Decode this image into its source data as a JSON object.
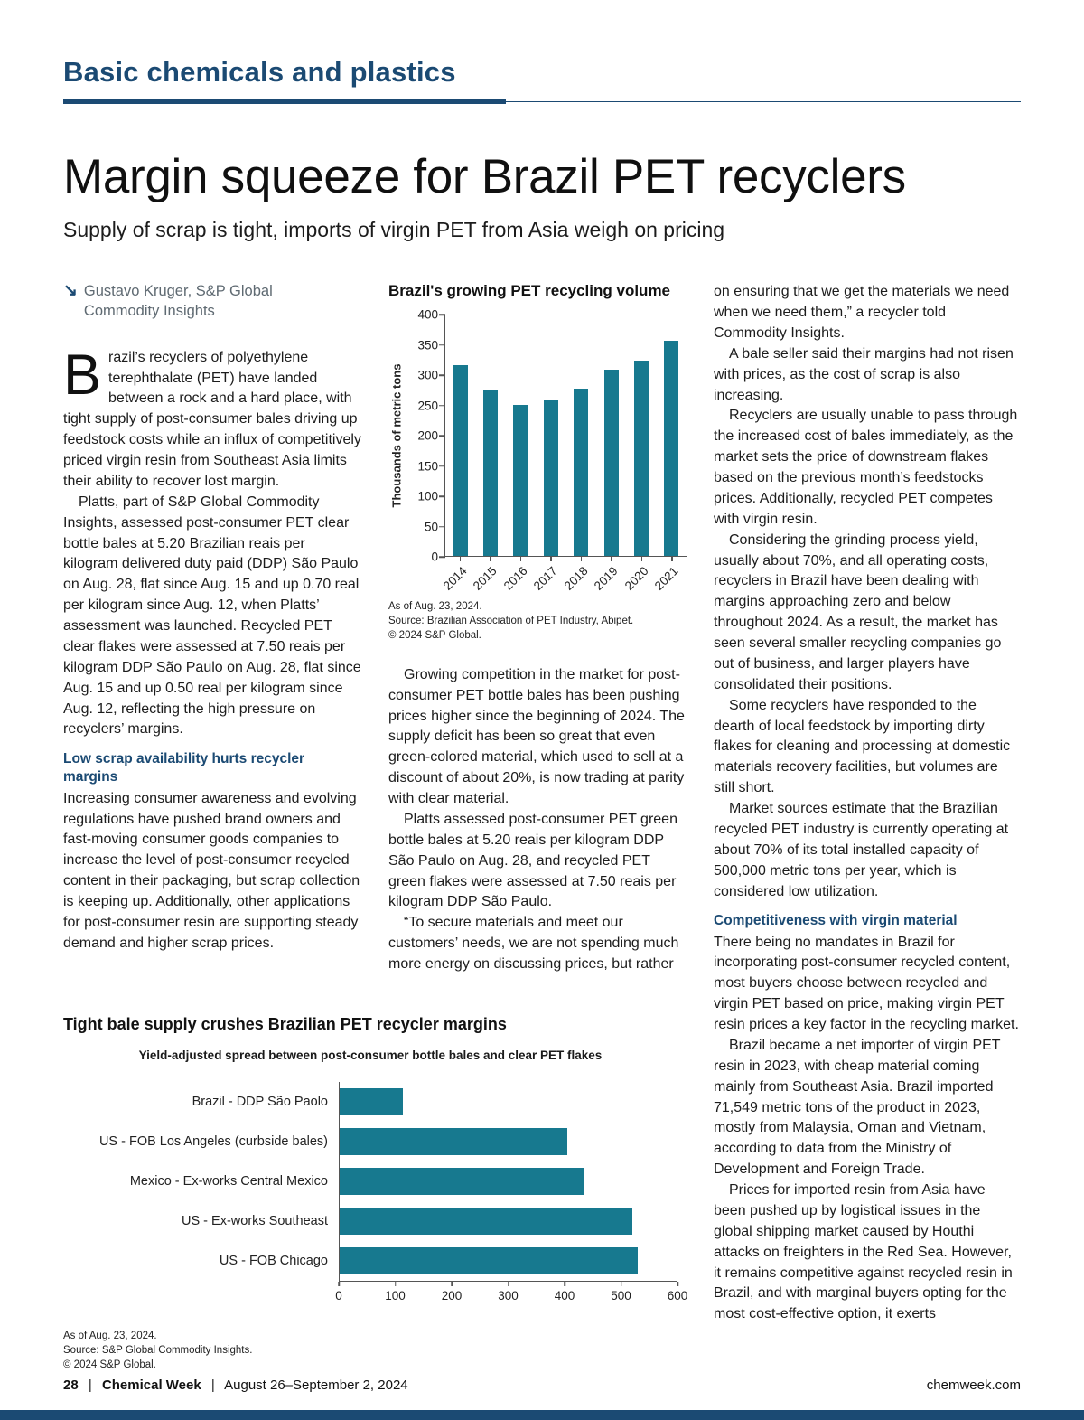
{
  "colors": {
    "accent_navy": "#1b4a73",
    "bar_teal": "#17798f"
  },
  "icons": {
    "byline_arrow": "↘"
  },
  "page": {
    "section": "Basic chemicals and plastics",
    "headline": "Margin squeeze for Brazil PET recyclers",
    "deck": "Supply of scrap is tight, imports of virgin PET from Asia weigh on pricing",
    "byline": "Gustavo Kruger, S&P Global Commodity Insights",
    "footer": {
      "page_number": "28",
      "publication": "Chemical Week",
      "date": "August 26–September 2, 2024",
      "separator": "|",
      "website": "chemweek.com"
    }
  },
  "article": {
    "col1_blocks": [
      {
        "type": "lead",
        "dropcap": "B",
        "text": "razil’s recyclers of polyethylene terephthalate (PET) have landed between a rock and a hard place, with tight supply of post-consumer bales driving up feedstock costs while an influx of competitively priced virgin resin from Southeast Asia limits their ability to recover lost margin."
      },
      {
        "type": "para",
        "indent": true,
        "text": "Platts, part of S&P Global Commodity Insights, assessed post-consumer PET clear bottle bales at 5.20 Brazilian reais per kilogram delivered duty paid (DDP) São Paulo on Aug. 28, flat since Aug. 15 and up 0.70 real per kilogram since Aug. 12, when Platts’ assessment was launched. Recycled PET clear flakes were assessed at 7.50 reais per kilogram DDP São Paulo on Aug. 28, flat since Aug. 15 and up 0.50 real per kilogram since Aug. 12, reflecting the high pressure on recyclers’ margins."
      },
      {
        "type": "heading",
        "text": "Low scrap availability hurts recycler margins"
      },
      {
        "type": "para",
        "indent": false,
        "text": "Increasing consumer awareness and evolving regulations have pushed brand owners and fast-moving consumer goods companies to increase the level of post-consumer recycled content in their packaging, but scrap collection is keeping up. Additionally, other applications for post-consumer resin are supporting steady demand and higher scrap prices."
      }
    ],
    "col2_blocks": [
      {
        "type": "para",
        "indent": true,
        "text": "Growing competition in the market for post-consumer PET bottle bales has been pushing prices higher since the beginning of 2024. The supply deficit has been so great that even green-colored material, which used to sell at a discount of about 20%, is now trading at parity with clear material."
      },
      {
        "type": "para",
        "indent": true,
        "text": "Platts assessed post-consumer PET green bottle bales at 5.20 reais per kilogram DDP São Paulo on Aug. 28, and recycled PET green flakes were assessed at 7.50 reais per kilogram DDP São Paulo."
      },
      {
        "type": "para",
        "indent": true,
        "text": "“To secure materials and meet our customers’ needs, we are not spending much more energy on discussing prices, but rather"
      }
    ],
    "col3_blocks": [
      {
        "type": "para",
        "indent": false,
        "text": "on ensuring that we get the materials we need when we need them,” a recycler told Commodity Insights."
      },
      {
        "type": "para",
        "indent": true,
        "text": "A bale seller said their margins had not risen with prices, as the cost of scrap is also increasing."
      },
      {
        "type": "para",
        "indent": true,
        "text": "Recyclers are usually unable to pass through the increased cost of bales immediately, as the market sets the price of downstream flakes based on the previous month’s feedstocks prices. Additionally, recycled PET competes with virgin resin."
      },
      {
        "type": "para",
        "indent": true,
        "text": "Considering the grinding process yield, usually about 70%, and all operating costs, recyclers in Brazil have been dealing with margins approaching zero and below throughout 2024. As a result, the market has seen several smaller recycling companies go out of business, and larger players have consolidated their positions."
      },
      {
        "type": "para",
        "indent": true,
        "text": "Some recyclers have responded to the dearth of local feedstock by importing dirty flakes for cleaning and processing at domestic materials recovery facilities, but volumes are still short."
      },
      {
        "type": "para",
        "indent": true,
        "text": "Market sources estimate that the Brazilian recycled PET industry is currently operating at about 70% of its total installed capacity of 500,000 metric tons per year, which is considered low utilization."
      },
      {
        "type": "heading",
        "text": "Competitiveness with virgin material"
      },
      {
        "type": "para",
        "indent": false,
        "text": "There being no mandates in Brazil for incorporating post-consumer recycled content, most buyers choose between recycled and virgin PET based on price, making virgin PET resin prices a key factor in the recycling market."
      },
      {
        "type": "para",
        "indent": true,
        "text": "Brazil became a net importer of virgin PET resin in 2023, with cheap material coming mainly from Southeast Asia. Brazil imported 71,549 metric tons of the product in 2023, mostly from Malaysia, Oman and Vietnam, according to data from the Ministry of Development and Foreign Trade."
      },
      {
        "type": "para",
        "indent": true,
        "text": "Prices for imported resin from Asia have been pushed up by logistical issues in the global shipping market caused by Houthi attacks on freighters in the Red Sea. However, it remains competitive against recycled resin in Brazil, and with marginal buyers opting for the most cost-effective option, it exerts"
      }
    ]
  },
  "chart_data": [
    {
      "type": "bar",
      "title": "Brazil's growing PET recycling volume",
      "categories": [
        "2014",
        "2015",
        "2016",
        "2017",
        "2018",
        "2019",
        "2020",
        "2021"
      ],
      "values": [
        315,
        275,
        250,
        258,
        277,
        308,
        323,
        355
      ],
      "xlabel": "",
      "ylabel": "Thousands of metric tons",
      "ylim": [
        0,
        400
      ],
      "ytick_step": 50,
      "grid": false,
      "bar_color": "#17798f",
      "footnote": [
        "As of Aug. 23, 2024.",
        "Source: Brazilian Association of PET Industry, Abipet.",
        "© 2024 S&P Global."
      ]
    },
    {
      "type": "bar-horizontal",
      "title": "Tight bale supply crushes Brazilian PET recycler margins",
      "subtitle": "Yield-adjusted spread between post-consumer bottle bales and clear PET flakes",
      "categories": [
        "Brazil - DDP São Paolo",
        "US - FOB Los Angeles (curbside bales)",
        "Mexico - Ex-works Central Mexico",
        "US - Ex-works Southeast",
        "US - FOB Chicago"
      ],
      "values": [
        113,
        405,
        435,
        520,
        530
      ],
      "xlim": [
        0,
        600
      ],
      "xtick_step": 100,
      "grid": false,
      "bar_color": "#17798f",
      "footnote": [
        "As of Aug. 23, 2024.",
        "Source: S&P Global Commodity Insights.",
        "© 2024 S&P Global."
      ]
    }
  ]
}
